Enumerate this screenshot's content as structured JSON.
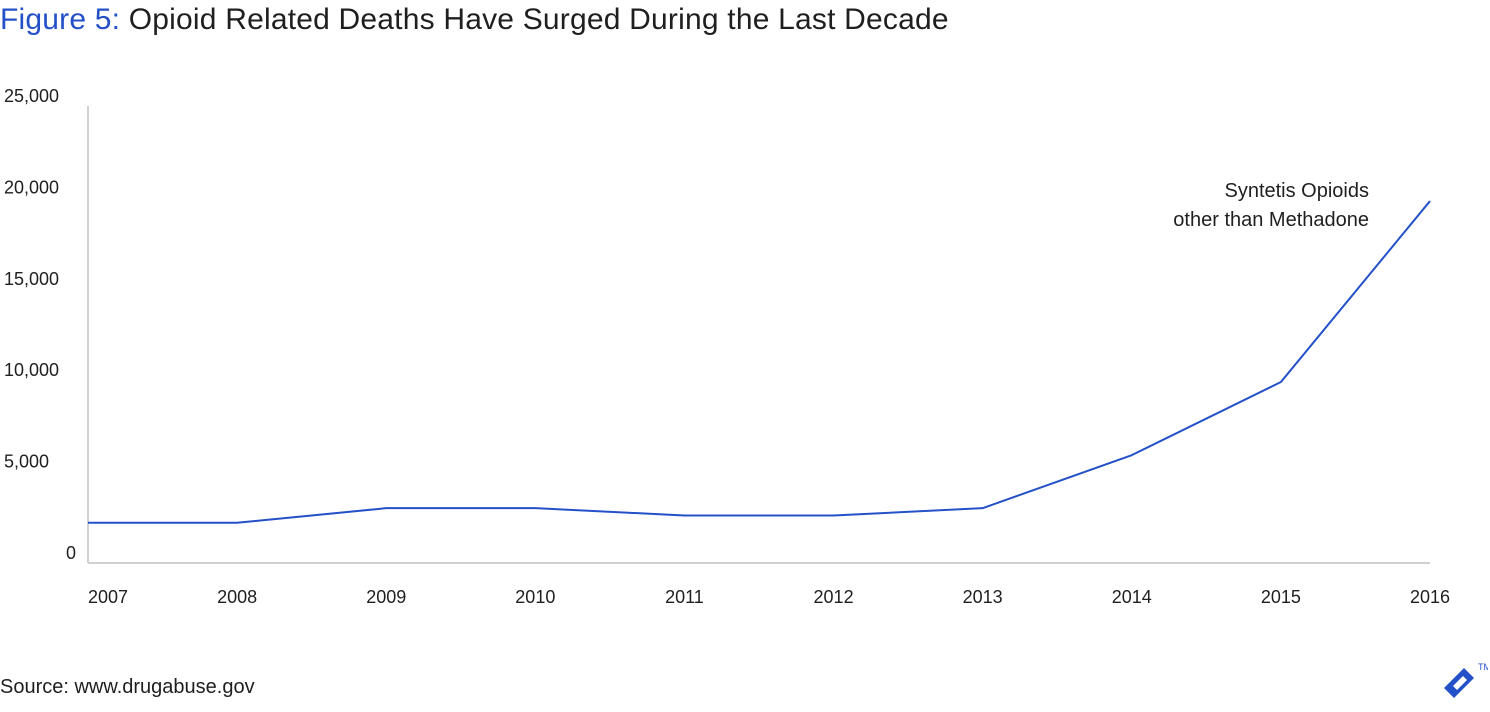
{
  "title_prefix": "Figure 5:",
  "title_text": "Opioid Related Deaths Have Surged During the Last Decade",
  "source": "Source: www.drugabuse.gov",
  "logo_tm": "TM",
  "colors": {
    "accent": "#2451c7",
    "line": "#2451c7",
    "axis": "#d0d0d0",
    "text": "#1f1f1f"
  },
  "chart_data": {
    "type": "line",
    "title": "Opioid Related Deaths Have Surged During the Last Decade",
    "xlabel": "",
    "ylabel": "",
    "ylim": [
      0,
      25000
    ],
    "yticks": [
      0,
      5000,
      10000,
      15000,
      20000,
      25000
    ],
    "ytick_labels": [
      "0",
      "5,000",
      "10,000",
      "15,000",
      "20,000",
      "25,000"
    ],
    "grid": false,
    "x": [
      "2007",
      "2008",
      "2009",
      "2010",
      "2011",
      "2012",
      "2013",
      "2014",
      "2015",
      "2016"
    ],
    "series": [
      {
        "name": "",
        "values": [
          2200,
          2200,
          3000,
          3000,
          2600,
          2600,
          3000,
          5900,
          9900,
          19800
        ]
      }
    ],
    "annotations": [
      "Syntetis Opioids",
      "other than Methadone"
    ]
  }
}
